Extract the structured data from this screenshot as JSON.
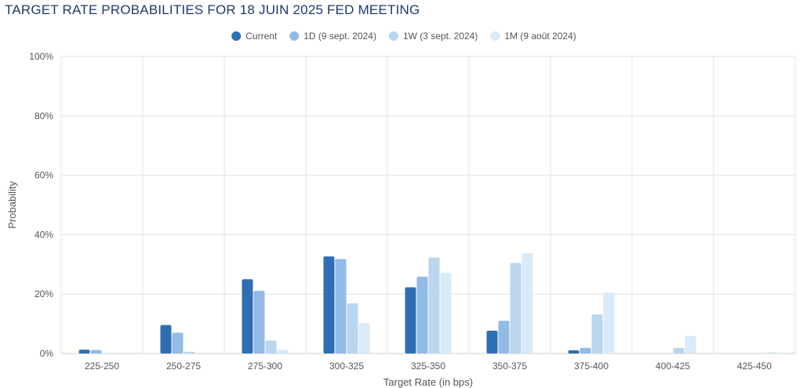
{
  "chart_data": {
    "type": "bar",
    "title": "TARGET RATE PROBABILITIES FOR 18 JUIN 2025 FED MEETING",
    "xlabel": "Target Rate (in bps)",
    "ylabel": "Probability",
    "categories": [
      "225-250",
      "250-275",
      "275-300",
      "300-325",
      "325-350",
      "350-375",
      "375-400",
      "400-425",
      "425-450"
    ],
    "y_ticks": [
      "0%",
      "20%",
      "40%",
      "60%",
      "80%",
      "100%"
    ],
    "ylim": [
      0,
      100
    ],
    "grid": true,
    "legend_position": "top-center",
    "series": [
      {
        "name": "Current",
        "color": "#2e6fb3",
        "values": [
          1.3,
          9.6,
          25.0,
          32.7,
          22.3,
          7.7,
          1.1,
          0.0,
          0.0
        ]
      },
      {
        "name": "1D (9 sept. 2024)",
        "color": "#92bbe6",
        "values": [
          1.2,
          7.0,
          21.1,
          31.8,
          25.9,
          11.0,
          1.9,
          0.0,
          0.0
        ]
      },
      {
        "name": "1W (3 sept. 2024)",
        "color": "#b9d6ee",
        "values": [
          0.0,
          0.6,
          4.4,
          16.9,
          32.3,
          30.5,
          13.2,
          1.9,
          0.0
        ]
      },
      {
        "name": "1M (9 août 2024)",
        "color": "#daeaf7",
        "values": [
          0.0,
          0.0,
          1.3,
          10.3,
          27.2,
          33.8,
          20.5,
          5.9,
          0.5
        ]
      }
    ]
  }
}
